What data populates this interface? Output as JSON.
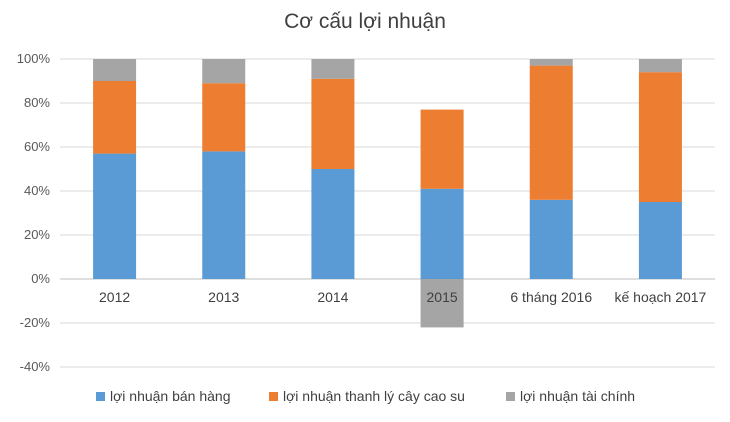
{
  "chart_data": {
    "type": "bar",
    "stacked": true,
    "title": "Cơ cấu lợi nhuận",
    "categories": [
      "2012",
      "2013",
      "2014",
      "2015",
      "6 tháng 2016",
      "kế hoạch 2017"
    ],
    "series": [
      {
        "name": "lợi nhuận bán hàng",
        "color": "#5b9bd5",
        "values": [
          57,
          58,
          50,
          41,
          36,
          35
        ]
      },
      {
        "name": "lợi nhuận thanh lý cây cao su",
        "color": "#ed7d31",
        "values": [
          33,
          31,
          41,
          36,
          61,
          59
        ]
      },
      {
        "name": "lợi nhuận tài chính",
        "color": "#a5a5a5",
        "values": [
          10,
          11,
          9,
          -22,
          3,
          6
        ]
      }
    ],
    "ylim": [
      -40,
      100
    ],
    "yticks": [
      "100%",
      "80%",
      "60%",
      "40%",
      "20%",
      "0%",
      "-20%",
      "-40%"
    ],
    "grid": true,
    "legend_position": "bottom"
  }
}
